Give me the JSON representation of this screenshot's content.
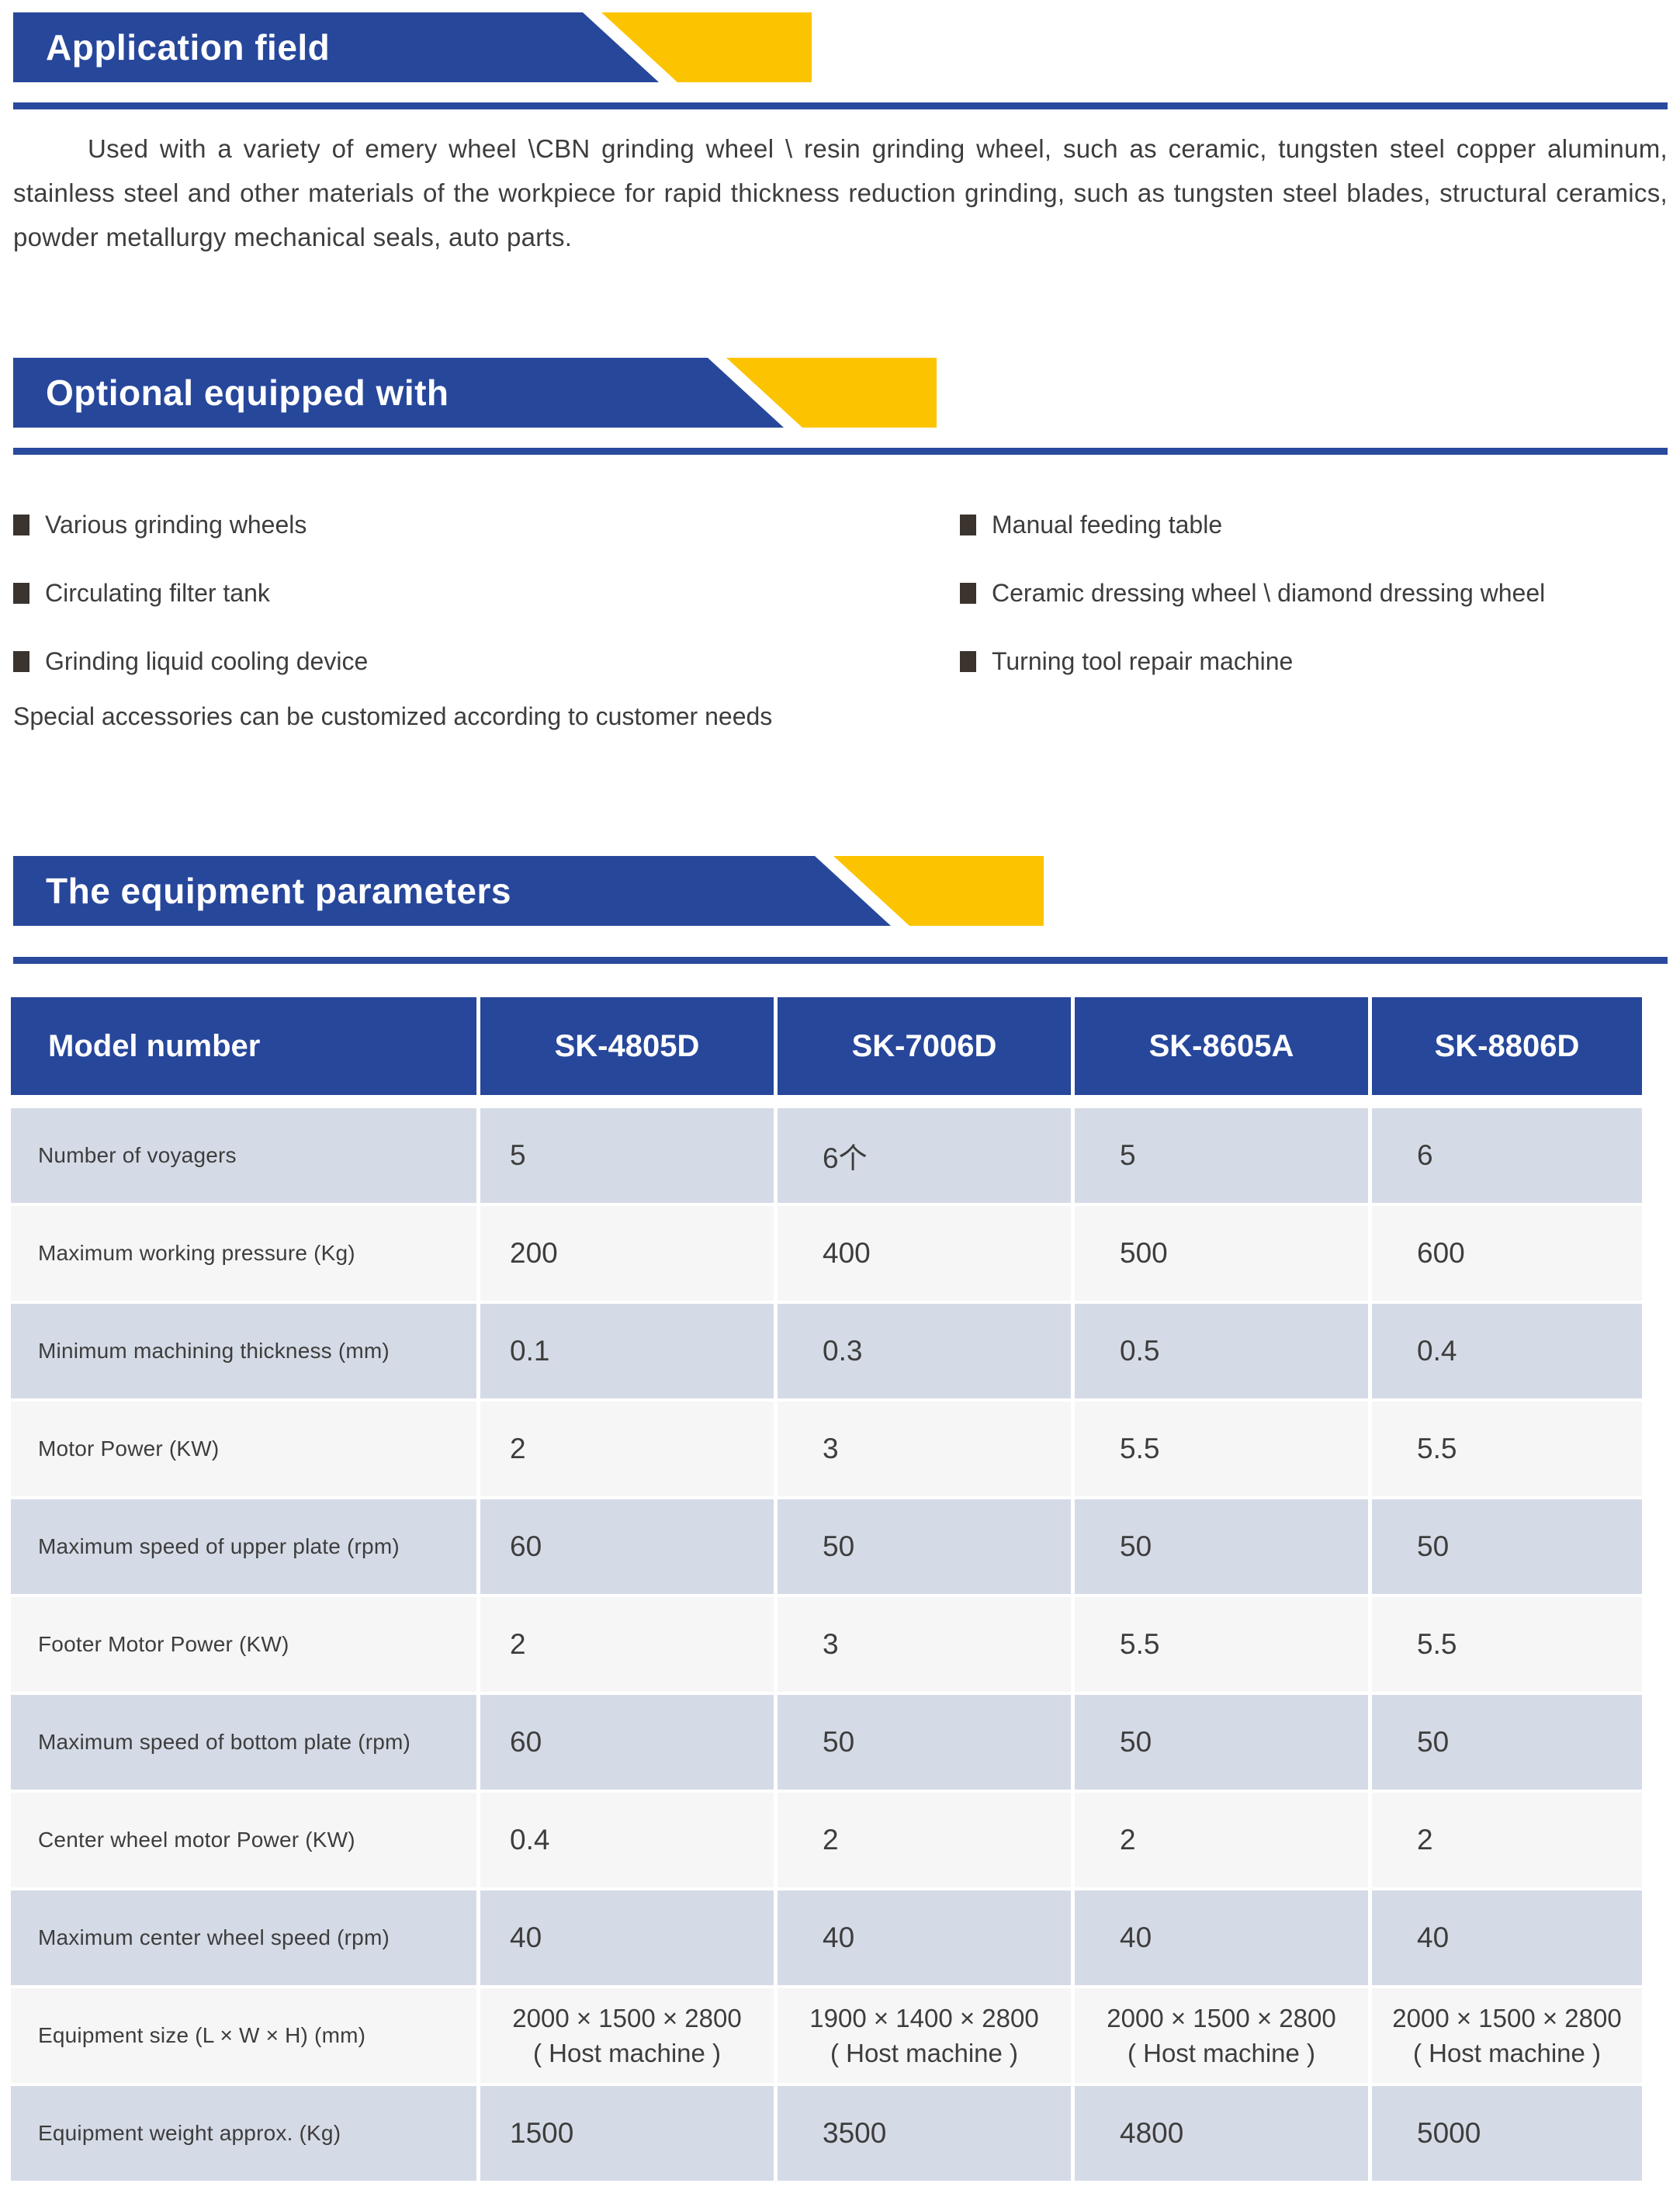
{
  "colors": {
    "banner_blue": "#27479B",
    "accent_yellow": "#FCC400",
    "divider_blue": "#2A4A9E",
    "row_shaded": "#D5DBE6",
    "row_plain": "#F6F6F7",
    "header_text": "#FFFFFF",
    "body_text": "#3D3D3D"
  },
  "sections": [
    {
      "title": "Application field"
    },
    {
      "title": "Optional equipped with"
    },
    {
      "title": "The equipment parameters"
    }
  ],
  "application": {
    "paragraph": "Used with a variety of emery wheel \\CBN grinding wheel \\ resin grinding wheel, such as ceramic, tungsten steel copper aluminum, stainless steel and other materials of the workpiece for rapid thickness reduction grinding, such as tungsten steel blades, structural ceramics, powder metallurgy mechanical seals, auto parts."
  },
  "optional": {
    "left_items": [
      "Various grinding wheels",
      "Circulating filter tank",
      "Grinding liquid cooling device"
    ],
    "right_items": [
      "Manual feeding table",
      "Ceramic dressing wheel \\ diamond dressing wheel",
      "Turning tool repair machine"
    ],
    "note": "Special accessories can be customized according to customer needs"
  },
  "parameters_table": {
    "header": [
      "Model number",
      "SK-4805D",
      "SK-7006D",
      "SK-8605A",
      "SK-8806D"
    ],
    "rows": [
      {
        "label": "Number of voyagers",
        "values": [
          "5",
          "6个",
          "5",
          "6"
        ]
      },
      {
        "label": "Maximum working pressure (Kg)",
        "values": [
          "200",
          "400",
          "500",
          "600"
        ]
      },
      {
        "label": "Minimum machining thickness (mm)",
        "values": [
          "0.1",
          "0.3",
          "0.5",
          "0.4"
        ]
      },
      {
        "label": "Motor Power (KW)",
        "values": [
          "2",
          "3",
          "5.5",
          "5.5"
        ]
      },
      {
        "label": "Maximum speed of upper plate (rpm)",
        "values": [
          "60",
          "50",
          "50",
          "50"
        ]
      },
      {
        "label": "Footer Motor Power (KW)",
        "values": [
          "2",
          "3",
          "5.5",
          "5.5"
        ]
      },
      {
        "label": "Maximum speed of bottom plate (rpm)",
        "values": [
          "60",
          "50",
          "50",
          "50"
        ]
      },
      {
        "label": "Center wheel motor Power (KW)",
        "values": [
          "0.4",
          "2",
          "2",
          "2"
        ]
      },
      {
        "label": "Maximum center wheel speed (rpm)",
        "values": [
          "40",
          "40",
          "40",
          "40"
        ]
      },
      {
        "label": "Equipment size (L × W × H) (mm)",
        "values": [
          [
            "2000 × 1500 × 2800",
            "( Host machine )"
          ],
          [
            "1900 × 1400 × 2800",
            "( Host machine )"
          ],
          [
            "2000 × 1500 × 2800",
            "( Host machine )"
          ],
          [
            "2000 × 1500 × 2800",
            "( Host machine )"
          ]
        ]
      },
      {
        "label": "Equipment weight approx. (Kg)",
        "values": [
          "1500",
          "3500",
          "4800",
          "5000"
        ]
      }
    ]
  }
}
